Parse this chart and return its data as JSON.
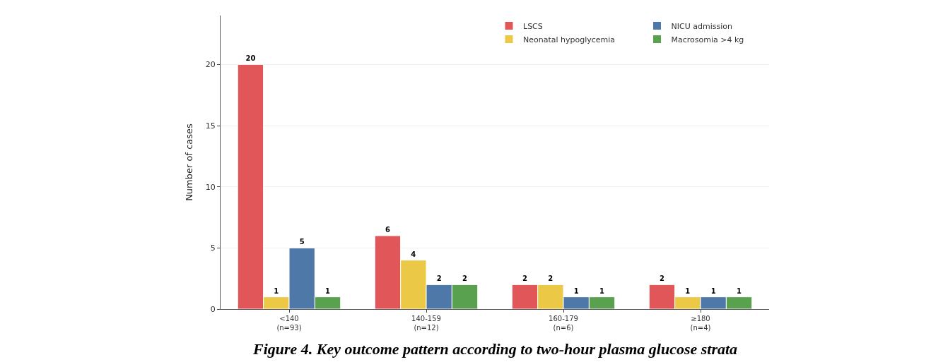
{
  "chart_data": {
    "type": "bar",
    "categories": [
      "<140\n(n=93)",
      "140-159\n(n=12)",
      "160-179\n(n=6)",
      "≥180\n(n=4)"
    ],
    "ylabel": "Number of cases",
    "series": [
      {
        "name": "LSCS",
        "color": "#e05659",
        "values": [
          20,
          6,
          2,
          2
        ]
      },
      {
        "name": "Neonatal hypoglycemia",
        "color": "#ebc845",
        "values": [
          1,
          4,
          2,
          1
        ]
      },
      {
        "name": "NICU admission",
        "color": "#4e78a7",
        "values": [
          5,
          2,
          1,
          1
        ]
      },
      {
        "name": "Macrosomia >4 kg",
        "color": "#59a14f",
        "values": [
          1,
          2,
          1,
          1
        ]
      }
    ],
    "ylim": [
      0,
      24
    ],
    "yticks": [
      0,
      5,
      10,
      15,
      20
    ],
    "grid": "y",
    "legend": "top right",
    "data_labels": true,
    "annotations": [
      "Figure 4. Key outcome pattern according to two-hour plasma glucose strata"
    ]
  }
}
